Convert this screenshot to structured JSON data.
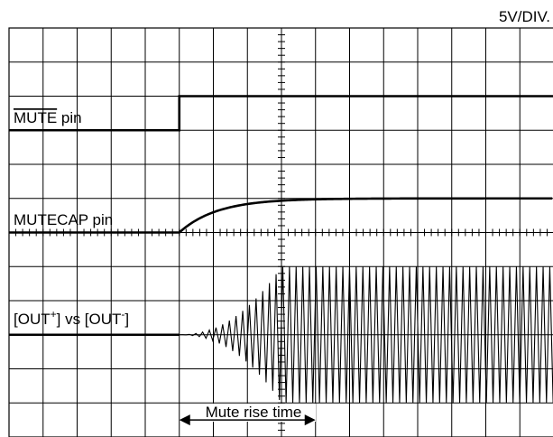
{
  "chart_data": {
    "type": "line",
    "title": "",
    "scale_label": "5V/DIV.",
    "grid": true,
    "grid_divisions": {
      "horizontal": 16,
      "vertical": 12
    },
    "series": [
      {
        "name": "MUTE pin",
        "label_overline_part": "MUTE",
        "label_suffix": " pin",
        "shape": "step",
        "low_level_div": 9,
        "high_level_div": 10,
        "step_at_div": 5
      },
      {
        "name": "MUTECAP pin",
        "shape": "exponential-rise",
        "low_level_div": 6,
        "high_level_div": 7,
        "rise_start_div": 5,
        "settled_div": 10
      },
      {
        "name": "[OUT+] vs [OUT-]",
        "label_parts": [
          "[OUT",
          "+",
          "] vs [OUT",
          "-",
          "]"
        ],
        "shape": "oscillation",
        "center_div": 3,
        "onset_div": 5,
        "full_amplitude_div": 8,
        "max_half_amplitude_div": 2
      }
    ],
    "annotations": [
      {
        "text": "Mute rise time",
        "type": "double-arrow",
        "from_div": 5,
        "to_div": 9
      }
    ]
  }
}
